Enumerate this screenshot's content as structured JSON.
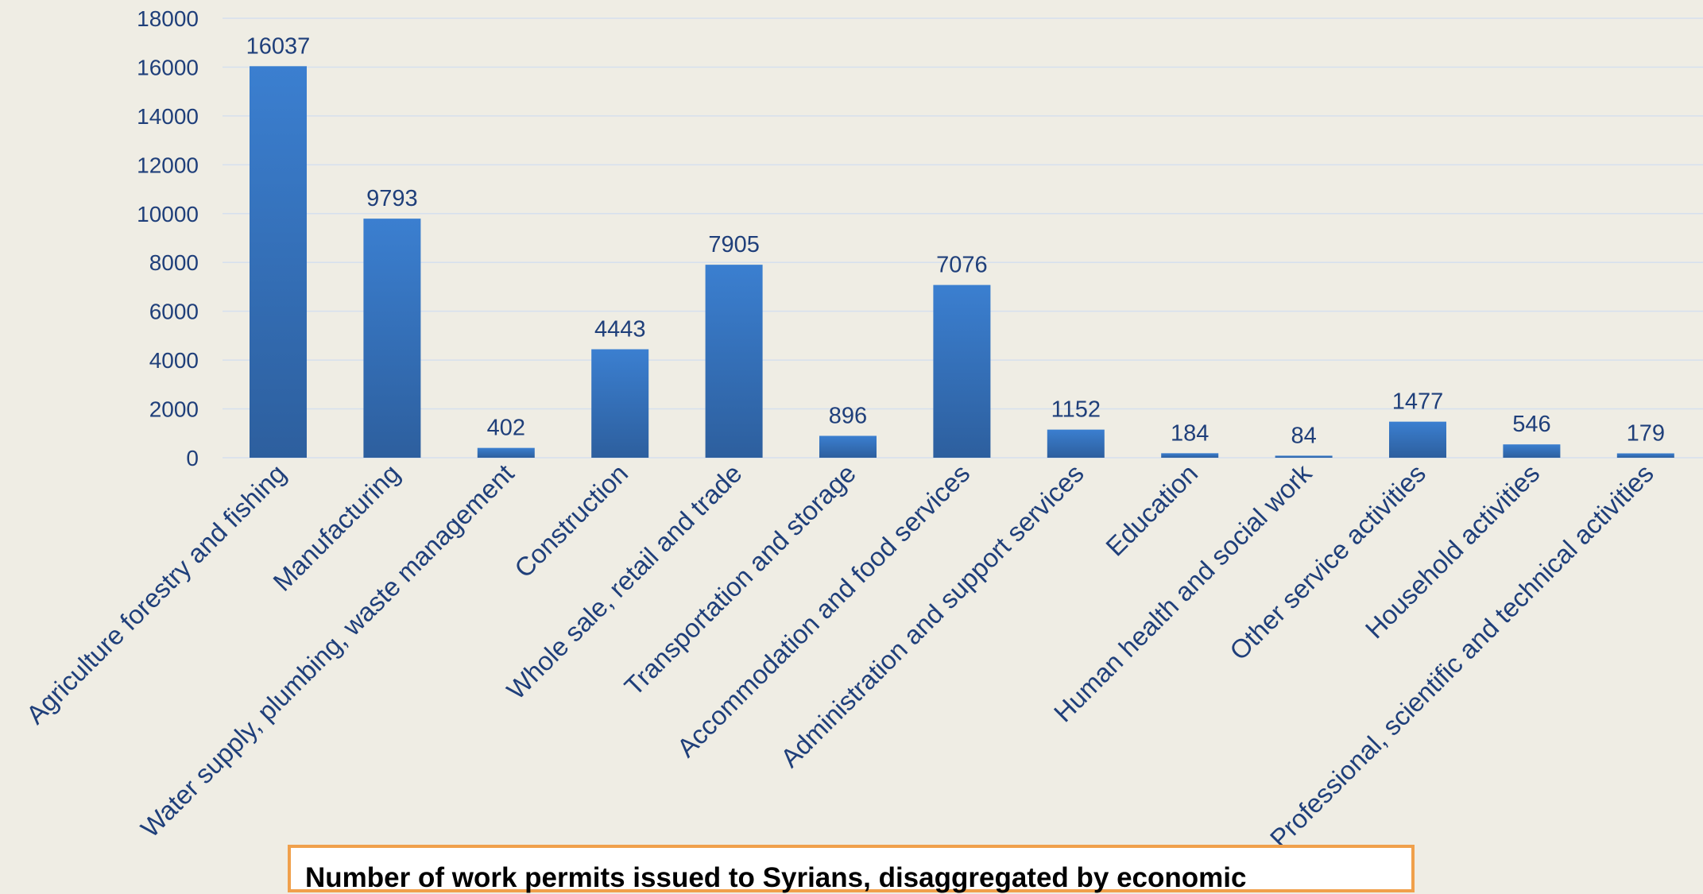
{
  "chart_data": {
    "type": "bar",
    "categories": [
      "Agriculture forestry and fishing",
      "Manufacturing",
      "Water supply, plumbing, waste management",
      "Construction",
      "Whole sale, retail and trade",
      "Transportation and storage",
      "Accommodation and food services",
      "Administration and support services",
      "Education",
      "Human health and social work",
      "Other service activities",
      "Household activities",
      "Professional, scientific and technical activities"
    ],
    "values": [
      16037,
      9793,
      402,
      4443,
      7905,
      896,
      7076,
      1152,
      184,
      84,
      1477,
      546,
      179
    ],
    "ylim": [
      0,
      18000
    ],
    "yticks": [
      0,
      2000,
      4000,
      6000,
      8000,
      10000,
      12000,
      14000,
      16000,
      18000
    ],
    "grid": true,
    "data_labels": true,
    "title": "Number of work permits issued to Syrians, disaggregated by economic",
    "colors": {
      "bar_top": "#3b7fd0",
      "bar_bottom": "#2d5f9e",
      "text": "#1f3f7a",
      "background": "#efede4",
      "caption_border": "#f0a04b"
    }
  }
}
